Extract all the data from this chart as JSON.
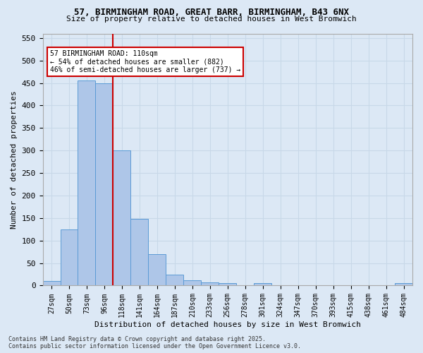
{
  "title_line1": "57, BIRMINGHAM ROAD, GREAT BARR, BIRMINGHAM, B43 6NX",
  "title_line2": "Size of property relative to detached houses in West Bromwich",
  "xlabel": "Distribution of detached houses by size in West Bromwich",
  "ylabel": "Number of detached properties",
  "bins": [
    "27sqm",
    "50sqm",
    "73sqm",
    "96sqm",
    "118sqm",
    "141sqm",
    "164sqm",
    "187sqm",
    "210sqm",
    "233sqm",
    "256sqm",
    "278sqm",
    "301sqm",
    "324sqm",
    "347sqm",
    "370sqm",
    "393sqm",
    "415sqm",
    "438sqm",
    "461sqm",
    "484sqm"
  ],
  "bar_values": [
    10,
    125,
    455,
    450,
    300,
    148,
    70,
    25,
    12,
    7,
    6,
    0,
    5,
    0,
    0,
    0,
    0,
    0,
    0,
    0,
    6
  ],
  "bar_color": "#aec6e8",
  "bar_edge_color": "#5b9bd5",
  "grid_color": "#c8d8e8",
  "bg_color": "#dce8f5",
  "vline_color": "#cc0000",
  "vline_pos": 3.5,
  "annotation_text": "57 BIRMINGHAM ROAD: 110sqm\n← 54% of detached houses are smaller (882)\n46% of semi-detached houses are larger (737) →",
  "annotation_box_color": "white",
  "annotation_box_edge": "#cc0000",
  "footer_line1": "Contains HM Land Registry data © Crown copyright and database right 2025.",
  "footer_line2": "Contains public sector information licensed under the Open Government Licence v3.0.",
  "ylim": [
    0,
    560
  ],
  "yticks": [
    0,
    50,
    100,
    150,
    200,
    250,
    300,
    350,
    400,
    450,
    500,
    550
  ]
}
